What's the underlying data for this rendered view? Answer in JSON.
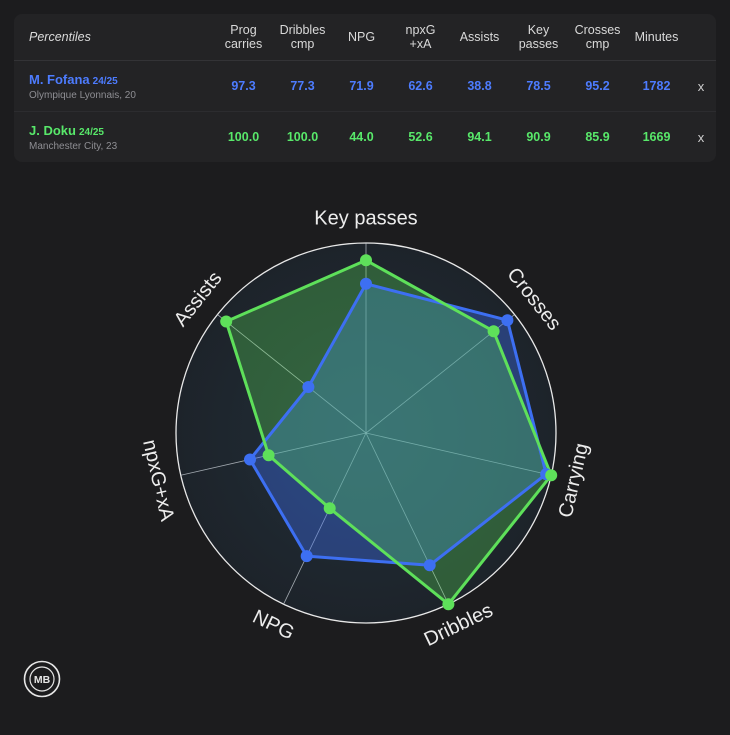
{
  "table": {
    "title": "Percentiles",
    "columns": [
      {
        "line1": "Prog",
        "line2": "carries"
      },
      {
        "line1": "Dribbles",
        "line2": "cmp"
      },
      {
        "line1": "NPG",
        "line2": ""
      },
      {
        "line1": "npxG",
        "line2": "+xA"
      },
      {
        "line1": "Assists",
        "line2": ""
      },
      {
        "line1": "Key",
        "line2": "passes"
      },
      {
        "line1": "Crosses",
        "line2": "cmp"
      },
      {
        "line1": "Minutes",
        "line2": ""
      }
    ],
    "remove_label": "x"
  },
  "players": [
    {
      "name": "M. Fofana",
      "season": "24/25",
      "club": "Olympique Lyonnais, 20",
      "values": [
        "97.3",
        "77.3",
        "71.9",
        "62.6",
        "38.8",
        "78.5",
        "95.2",
        "1782"
      ]
    },
    {
      "name": "J. Doku",
      "season": "24/25",
      "club": "Manchester City, 23",
      "values": [
        "100.0",
        "100.0",
        "44.0",
        "52.6",
        "94.1",
        "90.9",
        "85.9",
        "1669"
      ]
    }
  ],
  "logo_text": "MB",
  "colors": {
    "series_1": "#3d6ff2",
    "series_2": "#5ee05a"
  },
  "chart_data": {
    "type": "radar",
    "axes": [
      "Key passes",
      "Crosses",
      "Carrying",
      "Dribbles",
      "NPG",
      "npxG+xA",
      "Assists"
    ],
    "rlim": [
      0,
      100
    ],
    "series": [
      {
        "values": [
          78.5,
          95.2,
          97.3,
          77.3,
          71.9,
          62.6,
          38.8
        ]
      },
      {
        "values": [
          90.9,
          85.9,
          100.0,
          100.0,
          44.0,
          52.6,
          94.1
        ]
      }
    ]
  }
}
